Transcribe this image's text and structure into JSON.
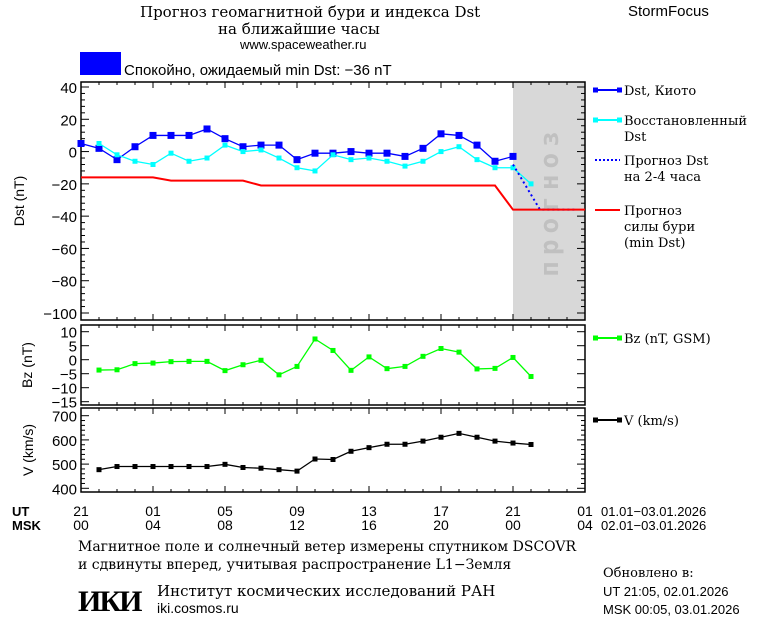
{
  "header": {
    "title_line1": "Прогноз геомагнитной бури и индекса Dst",
    "title_line2": "на ближайшие часы",
    "website": "www.spaceweather.ru",
    "brand": "StormFocus"
  },
  "status": {
    "text": "Спокойно, ожидаемый min Dst: −36 nT",
    "color": "#0000ff"
  },
  "time_axis": {
    "ut_label": "UT",
    "msk_label": "MSK",
    "ut_ticks": [
      "21",
      "01",
      "05",
      "09",
      "13",
      "17",
      "21",
      "01"
    ],
    "msk_ticks": [
      "00",
      "04",
      "08",
      "12",
      "16",
      "20",
      "00",
      "04"
    ],
    "ut_range": "01.01−03.01.2026",
    "msk_range": "02.01−03.01.2026"
  },
  "chart_data": [
    {
      "type": "line",
      "ylabel": "Dst (nT)",
      "ylim": [
        -100,
        40
      ],
      "yticks": [
        "40",
        "20",
        "0",
        "−20",
        "−40",
        "−60",
        "−80",
        "−100"
      ],
      "forecast_zone_label": "прогноз",
      "forecast_zone_color": "#d8d8d8",
      "x_unit_note": "hours after 21 UT 01.01.2026",
      "series": [
        {
          "name": "Dst, Киото",
          "color": "#0000ff",
          "x": [
            0,
            1,
            2,
            3,
            4,
            5,
            6,
            7,
            8,
            9,
            10,
            11,
            12,
            13,
            14,
            15,
            16,
            17,
            18,
            19,
            20,
            21,
            22,
            23,
            24
          ],
          "y": [
            5,
            2,
            -5,
            3,
            10,
            10,
            10,
            14,
            8,
            3,
            4,
            4,
            -5,
            -1,
            -1,
            0,
            -1,
            -1,
            -3,
            2,
            11,
            10,
            4,
            -6,
            -3
          ]
        },
        {
          "name": "Восстановленный Dst",
          "color": "#00ffff",
          "x": [
            1,
            2,
            3,
            4,
            5,
            6,
            7,
            8,
            9,
            10,
            11,
            12,
            13,
            14,
            15,
            16,
            17,
            18,
            19,
            20,
            21,
            22,
            23,
            24,
            25
          ],
          "y": [
            5,
            -2,
            -6,
            -8,
            -1,
            -6,
            -4,
            4,
            0,
            1,
            -4,
            -10,
            -12,
            -2,
            -5,
            -4,
            -6,
            -9,
            -6,
            0,
            3,
            -5,
            -10,
            -10,
            -20
          ]
        },
        {
          "name": "Прогноз Dst на 2-4 часа",
          "color": "#0000ff",
          "style": "dotted",
          "x": [
            24,
            25.5,
            27.5
          ],
          "y": [
            -8,
            -36,
            -36
          ]
        },
        {
          "name": "Прогноз силы бури (min Dst)",
          "color": "#ff0000",
          "x": [
            0,
            4,
            5,
            9,
            10,
            23,
            24,
            28
          ],
          "y": [
            -16,
            -16,
            -18,
            -18,
            -21,
            -21,
            -36,
            -36
          ]
        }
      ]
    },
    {
      "type": "line",
      "ylabel": "Bz (nT)",
      "ylim": [
        -16,
        12
      ],
      "yticks": [
        "10",
        "5",
        "0",
        "−5",
        "−10",
        "−15"
      ],
      "series": [
        {
          "name": "Bz (nT, GSM)",
          "color": "#00ff00",
          "x": [
            1,
            2,
            3,
            4,
            5,
            6,
            7,
            8,
            9,
            10,
            11,
            12,
            13,
            14,
            15,
            16,
            17,
            18,
            19,
            20,
            21,
            22,
            23,
            24,
            25
          ],
          "y": [
            -3.7,
            -3.6,
            -1.4,
            -1.2,
            -0.7,
            -0.6,
            -0.6,
            -3.9,
            -1.8,
            -0.2,
            -5.4,
            -2.4,
            7.4,
            3.3,
            -3.8,
            1,
            -3.2,
            -2.4,
            1.2,
            4,
            2.7,
            -3.3,
            -3.1,
            0.8,
            -6
          ]
        }
      ]
    },
    {
      "type": "line",
      "ylabel": "V (km/s)",
      "ylim": [
        370,
        720
      ],
      "yticks": [
        "700",
        "600",
        "500",
        "400"
      ],
      "series": [
        {
          "name": "V (km/s)",
          "color": "#000000",
          "x": [
            1,
            2,
            3,
            4,
            5,
            6,
            7,
            8,
            9,
            10,
            11,
            12,
            13,
            14,
            15,
            16,
            17,
            18,
            19,
            20,
            21,
            22,
            23,
            24,
            25
          ],
          "y": [
            477,
            490,
            490,
            490,
            490,
            490,
            490,
            499,
            486,
            483,
            477,
            471,
            521,
            519,
            553,
            568,
            582,
            582,
            595,
            611,
            627,
            611,
            595,
            587,
            581
          ]
        }
      ]
    }
  ],
  "footer": {
    "note_line1": "Магнитное поле и солнечный ветер измерены спутником DSCOVR",
    "note_line2": "и сдвинуты вперед, учитывая распространение L1−Земля",
    "logo": "ИКИ",
    "institute": "Институт космических исследований РАН",
    "institute_site": "iki.cosmos.ru",
    "updated_label": "Обновлено в:",
    "updated_ut": "UT   21:05, 02.01.2026",
    "updated_msk": "MSK 00:05, 03.01.2026"
  }
}
